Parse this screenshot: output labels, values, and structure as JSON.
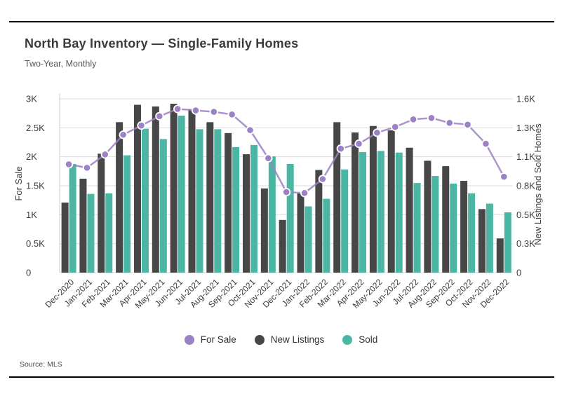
{
  "header": {
    "title": "North Bay Inventory — Single-Family Homes",
    "subtitle": "Two-Year, Monthly"
  },
  "footer": {
    "source": "Source: MLS"
  },
  "legend": [
    {
      "label": "For Sale",
      "color": "#9C81C4"
    },
    {
      "label": "New Listings",
      "color": "#474747"
    },
    {
      "label": "Sold",
      "color": "#4CB6A5"
    }
  ],
  "colors": {
    "line": "#9C81C4",
    "bar_dark": "#474747",
    "bar_teal": "#4CB6A5",
    "grid": "#dcdcdc",
    "axis_line": "#cfcfcf",
    "tick_text": "#3f3f3f"
  },
  "chart_data": {
    "type": "bar",
    "title": "North Bay Inventory — Single-Family Homes",
    "subtitle": "Two-Year, Monthly",
    "grid": true,
    "legend_position": "bottom",
    "categories": [
      "Dec-2020",
      "Jan-2021",
      "Feb-2021",
      "Mar-2021",
      "Apr-2021",
      "May-2021",
      "Jun-2021",
      "Jul-2021",
      "Aug-2021",
      "Sep-2021",
      "Oct-2021",
      "Nov-2021",
      "Dec-2021",
      "Jan-2022",
      "Feb-2022",
      "Mar-2022",
      "Apr-2022",
      "May-2022",
      "Jun-2022",
      "Jul-2022",
      "Aug-2022",
      "Sep-2022",
      "Oct-2022",
      "Nov-2022",
      "Dec-2022"
    ],
    "series": [
      {
        "name": "For Sale",
        "type": "line",
        "axis": "left",
        "color": "#9C81C4",
        "values": [
          1870,
          1810,
          2040,
          2380,
          2540,
          2700,
          2825,
          2800,
          2775,
          2730,
          2460,
          1975,
          1390,
          1375,
          1615,
          2140,
          2225,
          2415,
          2515,
          2645,
          2670,
          2585,
          2555,
          2225,
          1655
        ]
      },
      {
        "name": "New Listings",
        "type": "bar",
        "axis": "right",
        "color": "#474747",
        "values": [
          645,
          865,
          1095,
          1385,
          1545,
          1530,
          1555,
          1505,
          1385,
          1285,
          1090,
          775,
          485,
          730,
          945,
          1385,
          1290,
          1350,
          1310,
          1150,
          1030,
          980,
          845,
          585,
          315
        ]
      },
      {
        "name": "Sold",
        "type": "bar",
        "axis": "right",
        "color": "#4CB6A5",
        "values": [
          1000,
          725,
          730,
          1080,
          1325,
          1230,
          1445,
          1320,
          1320,
          1155,
          1175,
          1070,
          1000,
          610,
          680,
          950,
          1110,
          1120,
          1105,
          825,
          890,
          820,
          730,
          635,
          555
        ]
      }
    ],
    "left_axis": {
      "label": "For Sale",
      "max": 3000,
      "ticks": [
        "0",
        "0.5K",
        "1K",
        "1.5K",
        "2K",
        "2.5K",
        "3K"
      ]
    },
    "right_axis": {
      "label": "New Listings and Sold Homes",
      "max": 1600,
      "ticks": [
        "0",
        "0.3K",
        "0.5K",
        "0.8K",
        "1.1K",
        "1.3K",
        "1.6K"
      ]
    }
  }
}
